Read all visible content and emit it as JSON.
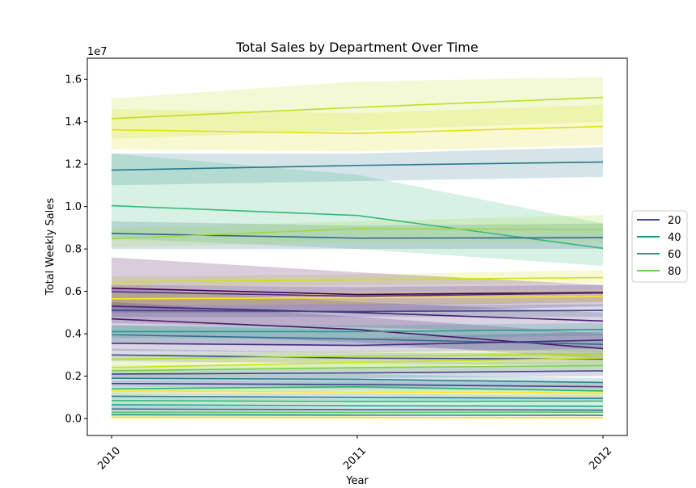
{
  "chart_data": {
    "type": "line",
    "title": "Total Sales by Department Over Time",
    "xlabel": "Year",
    "ylabel": "Total Weekly Sales",
    "y_multiplier": "1e7",
    "x": [
      "2010",
      "2011",
      "2012"
    ],
    "x_ticks": [
      "2010",
      "2011",
      "2012"
    ],
    "y_ticks": [
      "0.0",
      "0.2",
      "0.4",
      "0.6",
      "0.8",
      "1.0",
      "1.2",
      "1.4",
      "1.6"
    ],
    "ylim": [
      -0.08,
      1.7
    ],
    "grid": false,
    "legend_position": "center-right",
    "legend": [
      {
        "label": "20",
        "color": "#3b528b"
      },
      {
        "label": "40",
        "color": "#21918c"
      },
      {
        "label": "60",
        "color": "#1fa187"
      },
      {
        "label": "80",
        "color": "#6ece58"
      }
    ],
    "series": [
      {
        "color": "#bddf26",
        "values": [
          1.415,
          1.468,
          1.515
        ],
        "band": [
          [
            1.32,
            1.51
          ],
          [
            1.36,
            1.59
          ],
          [
            1.4,
            1.61
          ]
        ]
      },
      {
        "color": "#dde318",
        "values": [
          1.362,
          1.345,
          1.378
        ],
        "band": [
          [
            1.27,
            1.46
          ],
          [
            1.26,
            1.44
          ],
          [
            1.29,
            1.48
          ]
        ]
      },
      {
        "color": "#2a788e",
        "values": [
          1.172,
          1.194,
          1.21
        ],
        "band": [
          [
            1.1,
            1.25
          ],
          [
            1.12,
            1.25
          ],
          [
            1.14,
            1.28
          ]
        ]
      },
      {
        "color": "#35b779",
        "values": [
          1.004,
          0.958,
          0.803
        ],
        "band": [
          [
            0.85,
            1.25
          ],
          [
            0.8,
            1.15
          ],
          [
            0.72,
            0.92
          ]
        ]
      },
      {
        "color": "#31688e",
        "values": [
          0.873,
          0.851,
          0.853
        ],
        "band": [
          [
            0.8,
            0.93
          ],
          [
            0.8,
            0.91
          ],
          [
            0.8,
            0.92
          ]
        ]
      },
      {
        "color": "#a0da39",
        "values": [
          0.848,
          0.896,
          0.891
        ],
        "band": [
          [
            0.81,
            0.9
          ],
          [
            0.83,
            0.93
          ],
          [
            0.83,
            0.96
          ]
        ]
      },
      {
        "color": "#d0e11c",
        "values": [
          0.645,
          0.655,
          0.665
        ],
        "band": [
          [
            0.62,
            0.67
          ],
          [
            0.63,
            0.68
          ],
          [
            0.64,
            0.7
          ]
        ]
      },
      {
        "color": "#440154",
        "values": [
          0.615,
          0.585,
          0.595
        ],
        "band": [
          [
            0.5,
            0.76
          ],
          [
            0.5,
            0.69
          ],
          [
            0.53,
            0.63
          ]
        ]
      },
      {
        "color": "#46327e",
        "values": [
          0.598,
          0.577,
          0.592
        ],
        "band": [
          [
            0.54,
            0.63
          ],
          [
            0.53,
            0.62
          ],
          [
            0.55,
            0.63
          ]
        ]
      },
      {
        "color": "#482173",
        "values": [
          0.53,
          0.5,
          0.46
        ],
        "band": [
          [
            0.45,
            0.62
          ],
          [
            0.43,
            0.55
          ],
          [
            0.4,
            0.5
          ]
        ]
      },
      {
        "color": "#fde725",
        "values": [
          0.565,
          0.57,
          0.575
        ],
        "band": [
          [
            0.53,
            0.6
          ],
          [
            0.54,
            0.6
          ],
          [
            0.55,
            0.61
          ]
        ]
      },
      {
        "color": "#3e4989",
        "values": [
          0.51,
          0.505,
          0.51
        ],
        "band": [
          [
            0.48,
            0.54
          ],
          [
            0.48,
            0.53
          ],
          [
            0.48,
            0.54
          ]
        ]
      },
      {
        "color": "#481a6c",
        "values": [
          0.47,
          0.42,
          0.33
        ],
        "band": [
          [
            0.4,
            0.55
          ],
          [
            0.36,
            0.48
          ],
          [
            0.28,
            0.4
          ]
        ]
      },
      {
        "color": "#2c728e",
        "values": [
          0.395,
          0.375,
          0.35
        ],
        "band": [
          [
            0.35,
            0.44
          ],
          [
            0.34,
            0.42
          ],
          [
            0.31,
            0.4
          ]
        ]
      },
      {
        "color": "#1f9e89",
        "values": [
          0.41,
          0.41,
          0.42
        ],
        "band": [
          [
            0.38,
            0.44
          ],
          [
            0.38,
            0.44
          ],
          [
            0.39,
            0.45
          ]
        ]
      },
      {
        "color": "#472d7b",
        "values": [
          0.355,
          0.345,
          0.37
        ],
        "band": [
          [
            0.32,
            0.39
          ],
          [
            0.31,
            0.38
          ],
          [
            0.33,
            0.41
          ]
        ]
      },
      {
        "color": "#3b528b",
        "values": [
          0.3,
          0.285,
          0.28
        ],
        "band": [
          [
            0.27,
            0.33
          ],
          [
            0.26,
            0.31
          ],
          [
            0.25,
            0.31
          ]
        ]
      },
      {
        "color": "#addc30",
        "values": [
          0.28,
          0.295,
          0.305
        ],
        "band": [
          [
            0.26,
            0.3
          ],
          [
            0.27,
            0.32
          ],
          [
            0.28,
            0.33
          ]
        ]
      },
      {
        "color": "#cde11d",
        "values": [
          0.24,
          0.265,
          0.285
        ],
        "band": [
          [
            0.22,
            0.26
          ],
          [
            0.24,
            0.29
          ],
          [
            0.26,
            0.31
          ]
        ]
      },
      {
        "color": "#3f4788",
        "values": [
          0.21,
          0.215,
          0.225
        ],
        "band": [
          [
            0.19,
            0.23
          ],
          [
            0.19,
            0.24
          ],
          [
            0.2,
            0.25
          ]
        ]
      },
      {
        "color": "#26828e",
        "values": [
          0.19,
          0.185,
          0.17
        ],
        "band": [
          [
            0.17,
            0.21
          ],
          [
            0.16,
            0.21
          ],
          [
            0.15,
            0.19
          ]
        ]
      },
      {
        "color": "#7ad151",
        "values": [
          0.225,
          0.24,
          0.25
        ],
        "band": [
          [
            0.2,
            0.25
          ],
          [
            0.22,
            0.26
          ],
          [
            0.23,
            0.27
          ]
        ]
      },
      {
        "color": "#414487",
        "values": [
          0.165,
          0.16,
          0.15
        ],
        "band": [
          [
            0.15,
            0.18
          ],
          [
            0.14,
            0.18
          ],
          [
            0.13,
            0.17
          ]
        ]
      },
      {
        "color": "#fde725",
        "values": [
          0.13,
          0.125,
          0.12
        ],
        "band": [
          [
            0.11,
            0.15
          ],
          [
            0.11,
            0.14
          ],
          [
            0.1,
            0.14
          ]
        ]
      },
      {
        "color": "#2db27d",
        "values": [
          0.14,
          0.15,
          0.13
        ],
        "band": [
          [
            0.12,
            0.16
          ],
          [
            0.13,
            0.17
          ],
          [
            0.11,
            0.15
          ]
        ]
      },
      {
        "color": "#277f8e",
        "values": [
          0.105,
          0.1,
          0.095
        ],
        "band": [
          [
            0.09,
            0.12
          ],
          [
            0.08,
            0.12
          ],
          [
            0.08,
            0.11
          ]
        ]
      },
      {
        "color": "#3aba76",
        "values": [
          0.085,
          0.08,
          0.082
        ],
        "band": [
          [
            0.07,
            0.1
          ],
          [
            0.07,
            0.09
          ],
          [
            0.07,
            0.1
          ]
        ]
      },
      {
        "color": "#20a486",
        "values": [
          0.065,
          0.06,
          0.058
        ],
        "band": [
          [
            0.05,
            0.08
          ],
          [
            0.05,
            0.07
          ],
          [
            0.05,
            0.07
          ]
        ]
      },
      {
        "color": "#2e6f8e",
        "values": [
          0.045,
          0.042,
          0.04
        ],
        "band": [
          [
            0.03,
            0.06
          ],
          [
            0.03,
            0.05
          ],
          [
            0.03,
            0.05
          ]
        ]
      },
      {
        "color": "#5ec962",
        "values": [
          0.03,
          0.028,
          0.03
        ],
        "band": [
          [
            0.02,
            0.04
          ],
          [
            0.02,
            0.04
          ],
          [
            0.02,
            0.04
          ]
        ]
      },
      {
        "color": "#21918c",
        "values": [
          0.018,
          0.016,
          0.015
        ],
        "band": [
          [
            0.01,
            0.03
          ],
          [
            0.01,
            0.02
          ],
          [
            0.01,
            0.02
          ]
        ]
      },
      {
        "color": "#e5e419",
        "values": [
          0.006,
          0.005,
          0.004
        ],
        "band": [
          [
            0.0,
            0.01
          ],
          [
            0.0,
            0.01
          ],
          [
            0.0,
            0.01
          ]
        ]
      }
    ]
  }
}
